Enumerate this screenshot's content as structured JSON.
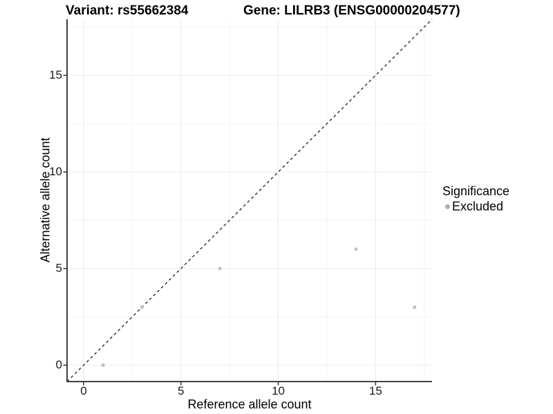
{
  "title": {
    "variant": "Variant: rs55662384",
    "gene": "Gene: LILRB3 (ENSG00000204577)"
  },
  "chart_data": {
    "type": "scatter",
    "title": "Variant: rs55662384 — Gene: LILRB3 (ENSG00000204577)",
    "xlabel": "Reference allele count",
    "ylabel": "Alternative allele count",
    "xlim": [
      -0.85,
      17.9
    ],
    "ylim": [
      -0.85,
      17.9
    ],
    "ticks_major": [
      0,
      5,
      10,
      15
    ],
    "ticks_minor": [
      2.5,
      7.5,
      12.5,
      17.5
    ],
    "grid": true,
    "points": [
      {
        "x": 1,
        "y": 0,
        "significance": "Excluded"
      },
      {
        "x": 3,
        "y": 3,
        "significance": "Excluded"
      },
      {
        "x": 7,
        "y": 5,
        "significance": "Excluded"
      },
      {
        "x": 14,
        "y": 6,
        "significance": "Excluded"
      },
      {
        "x": 17,
        "y": 3,
        "significance": "Excluded"
      }
    ],
    "reference_line": {
      "type": "identity",
      "slope": 1,
      "intercept": 0,
      "style": "dashed"
    },
    "legend": {
      "position": "right",
      "title": "Significance",
      "items": [
        {
          "label": "Excluded",
          "color": "#b9b9b9"
        }
      ]
    }
  },
  "colors": {
    "point": "#c0c0c0",
    "legend_point": "#b0b0b0",
    "grid_major": "#ebebeb",
    "grid_minor": "#f4f4f4",
    "axis_line": "#404040",
    "tick_mark": "#333333",
    "dashed_line": "#1a1a1a",
    "background": "#ffffff"
  }
}
